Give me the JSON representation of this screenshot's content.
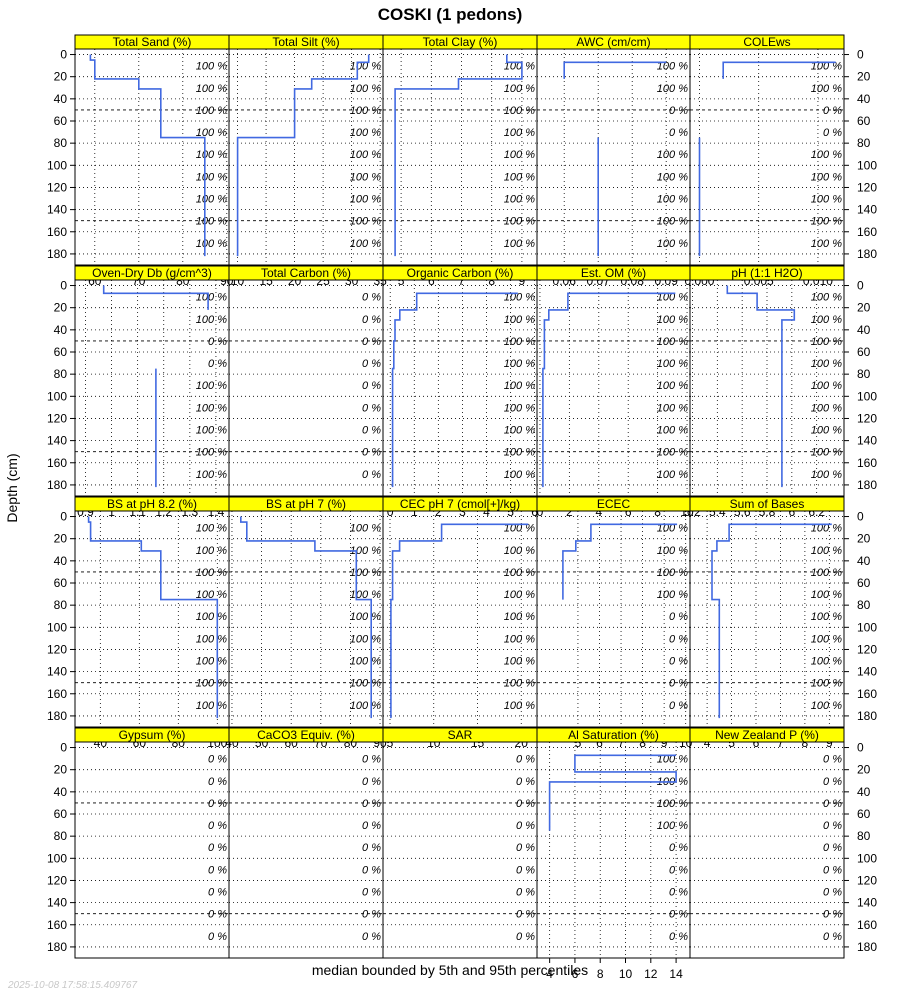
{
  "title": "COSKI (1 pedons)",
  "ylabel": "Depth (cm)",
  "xlabel": "median bounded by 5th and 95th percentiles",
  "timestamp": "2025-10-08 17:58:15.409767",
  "colors": {
    "line": "#4169e1",
    "strip": "#ffff00",
    "grid": "#000000",
    "pct_text": "#000000"
  },
  "chart_data": {
    "type": "line",
    "depth_ticks": [
      0,
      20,
      40,
      60,
      80,
      100,
      120,
      140,
      160,
      180
    ],
    "ylim": [
      190,
      -5
    ],
    "depth_slice_labels_cm": [
      10,
      30,
      50,
      70,
      90,
      110,
      130,
      150,
      170
    ],
    "grid_dashed_depths_cm": [
      50,
      150
    ],
    "rows": [
      [
        {
          "name": "Total Sand (%)",
          "xlim": [
            55.5,
            90.5
          ],
          "ticks": [
            60,
            70,
            80,
            90
          ],
          "pct": [
            "100 %",
            "100 %",
            "100 %",
            "100 %",
            "100 %",
            "100 %",
            "100 %",
            "100 %",
            "100 %"
          ],
          "median": [
            [
              59,
              0
            ],
            [
              59,
              5
            ],
            [
              60,
              5
            ],
            [
              60,
              15
            ],
            [
              60,
              22
            ],
            [
              70,
              22
            ],
            [
              70,
              31
            ],
            [
              75,
              31
            ],
            [
              75,
              75
            ],
            [
              85,
              75
            ],
            [
              85,
              182
            ]
          ]
        },
        {
          "name": "Total Silt (%)",
          "xlim": [
            8.5,
            35.5
          ],
          "ticks": [
            10,
            15,
            20,
            25,
            30,
            35
          ],
          "pct": [
            "100 %",
            "100 %",
            "100 %",
            "100 %",
            "100 %",
            "100 %",
            "100 %",
            "100 %",
            "100 %"
          ],
          "median": [
            [
              33,
              0
            ],
            [
              33,
              7
            ],
            [
              31,
              7
            ],
            [
              31,
              22
            ],
            [
              23,
              22
            ],
            [
              23,
              31
            ],
            [
              20,
              31
            ],
            [
              20,
              75
            ],
            [
              10,
              75
            ],
            [
              10,
              182
            ]
          ]
        },
        {
          "name": "Total Clay (%)",
          "xlim": [
            4.4,
            9.5
          ],
          "ticks": [
            5,
            6,
            7,
            8,
            9
          ],
          "pct": [
            "100 %",
            "100 %",
            "100 %",
            "100 %",
            "100 %",
            "100 %",
            "100 %",
            "100 %",
            "100 %"
          ],
          "median": [
            [
              8.5,
              0
            ],
            [
              8.5,
              7
            ],
            [
              9,
              7
            ],
            [
              9,
              22
            ],
            [
              6.9,
              22
            ],
            [
              6.9,
              31
            ],
            [
              4.8,
              31
            ],
            [
              4.8,
              182
            ]
          ]
        },
        {
          "name": "AWC (cm/cm)",
          "xlim": [
            0.052,
            0.097
          ],
          "ticks": [
            0.06,
            0.07,
            0.08,
            0.09
          ],
          "pct": [
            "100 %",
            "100 %",
            "0 %",
            "0 %",
            "100 %",
            "100 %",
            "100 %",
            "100 %",
            "100 %"
          ],
          "median": [
            [
              0.09,
              7
            ],
            [
              0.06,
              7
            ],
            [
              0.06,
              22
            ]
          ],
          "median2": [
            [
              0.07,
              75
            ],
            [
              0.07,
              182
            ]
          ]
        },
        {
          "name": "COLEws",
          "xlim": [
            -0.0008,
            0.0122
          ],
          "ticks": [
            0.0,
            0.005,
            0.01
          ],
          "tick_labels": [
            "0.000",
            "0.005",
            "0.010"
          ],
          "pct": [
            "100 %",
            "100 %",
            "0 %",
            "0 %",
            "100 %",
            "100 %",
            "100 %",
            "100 %",
            "100 %"
          ],
          "median": [
            [
              0.0115,
              7
            ],
            [
              0.002,
              7
            ],
            [
              0.002,
              22
            ]
          ],
          "median2": [
            [
              0.0,
              75
            ],
            [
              0.0,
              182
            ]
          ]
        }
      ],
      [
        {
          "name": "Oven-Dry Db (g/cm^3)",
          "xlim": [
            0.86,
            1.45
          ],
          "ticks": [
            0.9,
            1.0,
            1.1,
            1.2,
            1.3,
            1.4
          ],
          "pct": [
            "100 %",
            "100 %",
            "0 %",
            "0 %",
            "100 %",
            "100 %",
            "100 %",
            "100 %",
            "100 %"
          ],
          "median": [
            [
              0.97,
              0
            ],
            [
              0.97,
              7
            ],
            [
              1.37,
              7
            ],
            [
              1.37,
              22
            ]
          ],
          "median2": [
            [
              1.17,
              75
            ],
            [
              1.17,
              182
            ]
          ]
        },
        {
          "name": "Total Carbon (%)",
          "xlim": [
            0,
            1
          ],
          "ticks": [],
          "pct": [
            "0 %",
            "0 %",
            "0 %",
            "0 %",
            "0 %",
            "0 %",
            "0 %",
            "0 %",
            "0 %"
          ],
          "median": []
        },
        {
          "name": "Organic Carbon (%)",
          "xlim": [
            -0.3,
            6.1
          ],
          "ticks": [
            0,
            1,
            2,
            3,
            4,
            5,
            6
          ],
          "pct": [
            "100 %",
            "100 %",
            "100 %",
            "100 %",
            "100 %",
            "100 %",
            "100 %",
            "100 %",
            "100 %"
          ],
          "median": [
            [
              5.3,
              7
            ],
            [
              1.1,
              7
            ],
            [
              1.1,
              22
            ],
            [
              0.4,
              22
            ],
            [
              0.4,
              31
            ],
            [
              0.2,
              31
            ],
            [
              0.2,
              50
            ],
            [
              0.15,
              50
            ],
            [
              0.15,
              75
            ],
            [
              0.1,
              75
            ],
            [
              0.1,
              182
            ]
          ]
        },
        {
          "name": "Est. OM (%)",
          "xlim": [
            -0.2,
            10.2
          ],
          "ticks": [
            0,
            2,
            4,
            6,
            8,
            10
          ],
          "pct": [
            "100 %",
            "100 %",
            "100 %",
            "100 %",
            "100 %",
            "100 %",
            "100 %",
            "100 %",
            "100 %"
          ],
          "median": [
            [
              9.2,
              7
            ],
            [
              1.9,
              7
            ],
            [
              1.9,
              22
            ],
            [
              0.6,
              22
            ],
            [
              0.6,
              31
            ],
            [
              0.3,
              31
            ],
            [
              0.3,
              75
            ],
            [
              0.2,
              75
            ],
            [
              0.2,
              182
            ]
          ]
        },
        {
          "name": "pH (1:1 H2O)",
          "xlim": [
            5.18,
            6.42
          ],
          "ticks": [
            5.2,
            5.4,
            5.6,
            5.8,
            6.0,
            6.2
          ],
          "pct": [
            "100 %",
            "100 %",
            "100 %",
            "100 %",
            "100 %",
            "100 %",
            "100 %",
            "100 %",
            "100 %"
          ],
          "median": [
            [
              5.48,
              0
            ],
            [
              5.48,
              7
            ],
            [
              5.72,
              7
            ],
            [
              5.72,
              22
            ],
            [
              6.02,
              22
            ],
            [
              6.02,
              31
            ],
            [
              5.92,
              31
            ],
            [
              5.92,
              182
            ]
          ]
        }
      ],
      [
        {
          "name": "BS at pH 8.2 (%)",
          "xlim": [
            27,
            106
          ],
          "ticks": [
            40,
            60,
            80,
            100
          ],
          "pct": [
            "100 %",
            "100 %",
            "100 %",
            "100 %",
            "100 %",
            "100 %",
            "100 %",
            "100 %",
            "100 %"
          ],
          "median": [
            [
              34,
              0
            ],
            [
              34,
              5
            ],
            [
              35,
              5
            ],
            [
              35,
              22
            ],
            [
              61,
              22
            ],
            [
              61,
              31
            ],
            [
              71,
              31
            ],
            [
              71,
              75
            ],
            [
              100,
              75
            ],
            [
              100,
              182
            ]
          ]
        },
        {
          "name": "BS at pH 7 (%)",
          "xlim": [
            39,
            91
          ],
          "ticks": [
            40,
            50,
            60,
            70,
            80,
            90
          ],
          "pct": [
            "100 %",
            "100 %",
            "100 %",
            "100 %",
            "100 %",
            "100 %",
            "100 %",
            "100 %",
            "100 %"
          ],
          "median": [
            [
              43,
              0
            ],
            [
              43,
              5
            ],
            [
              45,
              5
            ],
            [
              45,
              22
            ],
            [
              68,
              22
            ],
            [
              68,
              31
            ],
            [
              82,
              31
            ],
            [
              82,
              75
            ],
            [
              87,
              75
            ],
            [
              87,
              182
            ]
          ]
        },
        {
          "name": "CEC pH 7 (cmol[+]/kg)",
          "xlim": [
            4.2,
            21.8
          ],
          "ticks": [
            5,
            10,
            15,
            20
          ],
          "pct": [
            "100 %",
            "100 %",
            "100 %",
            "100 %",
            "100 %",
            "100 %",
            "100 %",
            "100 %",
            "100 %"
          ],
          "median": [
            [
              20.8,
              7
            ],
            [
              10.9,
              7
            ],
            [
              10.9,
              22
            ],
            [
              6.1,
              22
            ],
            [
              6.1,
              31
            ],
            [
              5.3,
              31
            ],
            [
              5.3,
              75
            ],
            [
              5.1,
              75
            ],
            [
              5.1,
              182
            ]
          ]
        },
        {
          "name": "ECEC",
          "xlim": [
            3.1,
            10.2
          ],
          "ticks": [
            5,
            6,
            7,
            8,
            9,
            10
          ],
          "tick_labels": [
            "5",
            "6",
            "7",
            "8",
            "9",
            "10"
          ],
          "pct": [
            "100 %",
            "100 %",
            "100 %",
            "100 %",
            "0 %",
            "0 %",
            "0 %",
            "0 %",
            "0 %"
          ],
          "median": [
            [
              9.6,
              7
            ],
            [
              5.6,
              7
            ],
            [
              5.6,
              22
            ],
            [
              4.9,
              22
            ],
            [
              4.9,
              31
            ],
            [
              4.3,
              31
            ],
            [
              4.3,
              75
            ]
          ]
        },
        {
          "name": "Sum of Bases",
          "xlim": [
            3.3,
            9.6
          ],
          "ticks": [
            4,
            5,
            6,
            7,
            8,
            9
          ],
          "pct": [
            "100 %",
            "100 %",
            "100 %",
            "100 %",
            "100 %",
            "100 %",
            "100 %",
            "100 %",
            "100 %"
          ],
          "median": [
            [
              9.1,
              7
            ],
            [
              4.9,
              7
            ],
            [
              4.9,
              22
            ],
            [
              4.4,
              22
            ],
            [
              4.4,
              31
            ],
            [
              4.2,
              31
            ],
            [
              4.2,
              75
            ],
            [
              4.5,
              75
            ],
            [
              4.5,
              182
            ]
          ]
        }
      ],
      [
        {
          "name": "Gypsum (%)",
          "xlim": [
            0,
            1
          ],
          "ticks": [],
          "pct": [
            "0 %",
            "0 %",
            "0 %",
            "0 %",
            "0 %",
            "0 %",
            "0 %",
            "0 %",
            "0 %"
          ],
          "median": []
        },
        {
          "name": "CaCO3 Equiv. (%)",
          "xlim": [
            0,
            1
          ],
          "ticks": [],
          "pct": [
            "0 %",
            "0 %",
            "0 %",
            "0 %",
            "0 %",
            "0 %",
            "0 %",
            "0 %",
            "0 %"
          ],
          "median": []
        },
        {
          "name": "SAR",
          "xlim": [
            0,
            1
          ],
          "ticks": [],
          "pct": [
            "0 %",
            "0 %",
            "0 %",
            "0 %",
            "0 %",
            "0 %",
            "0 %",
            "0 %",
            "0 %"
          ],
          "median": []
        },
        {
          "name": "Al Saturation (%)",
          "xlim": [
            3.0,
            15.1
          ],
          "ticks": [
            4,
            6,
            8,
            10,
            12,
            14
          ],
          "pct": [
            "100 %",
            "100 %",
            "100 %",
            "100 %",
            "0 %",
            "0 %",
            "0 %",
            "0 %",
            "0 %"
          ],
          "median": [
            [
              14,
              7
            ],
            [
              6,
              7
            ],
            [
              6,
              22
            ],
            [
              14,
              22
            ],
            [
              14,
              31
            ],
            [
              6,
              31
            ],
            [
              4,
              31
            ],
            [
              4,
              75
            ]
          ]
        },
        {
          "name": "New Zealand P (%)",
          "xlim": [
            0,
            1
          ],
          "ticks": [],
          "pct": [
            "0 %",
            "0 %",
            "0 %",
            "0 %",
            "0 %",
            "0 %",
            "0 %",
            "0 %",
            "0 %"
          ],
          "median": []
        }
      ]
    ]
  }
}
